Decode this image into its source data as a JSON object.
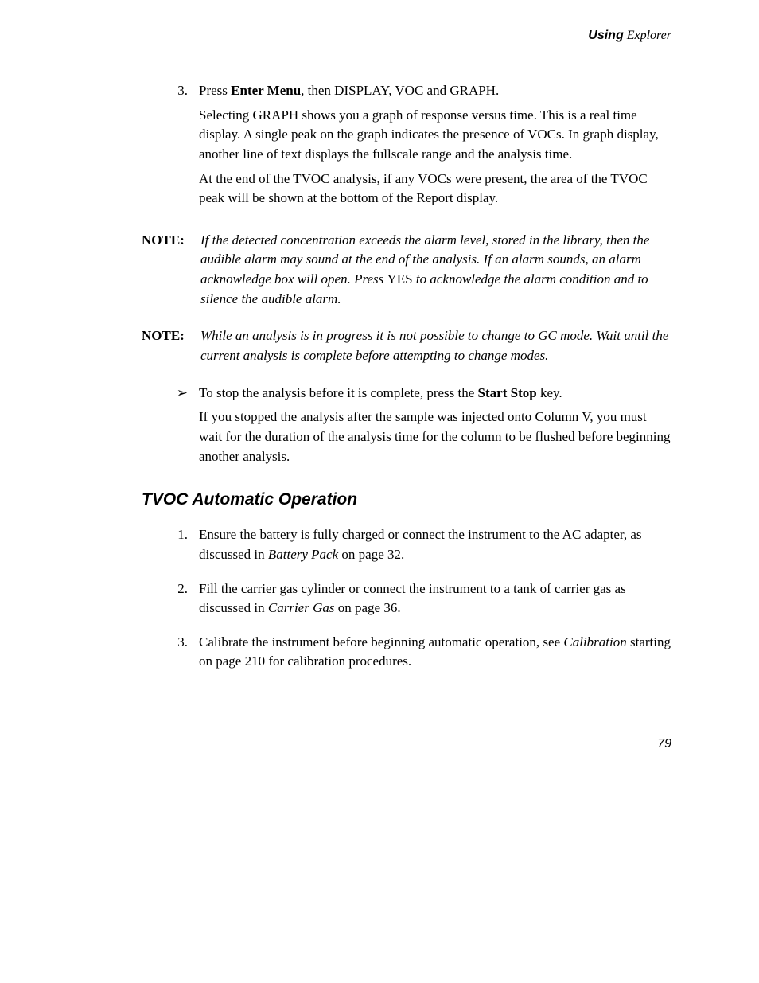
{
  "header": {
    "bold": "Using",
    "regular": " Explorer"
  },
  "step3": {
    "num": "3.",
    "p1_a": "Press ",
    "p1_b": "Enter Menu",
    "p1_c": ", then DISPLAY, VOC and GRAPH.",
    "p2": "Selecting GRAPH shows you a graph of response versus time. This is a real time display. A single peak on the graph indicates the presence of VOCs. In graph display, another line of text displays the fullscale range and the analysis time.",
    "p3": "At the end of the TVOC analysis, if any VOCs were present, the area of the TVOC peak will be shown at the bottom of the Report display."
  },
  "note1": {
    "label": "NOTE:",
    "a": "If the detected concentration exceeds the alarm level, stored in the library, then the audible alarm may sound at the end of the analysis. If an alarm sounds, an alarm acknowledge box will open. Press ",
    "b": "YES",
    "c": " to acknowledge the alarm condition and to silence the audible alarm."
  },
  "note2": {
    "label": "NOTE:",
    "text": "While an analysis is in progress it is not possible to change to GC mode. Wait until the current analysis is complete before attempting to change modes."
  },
  "stop": {
    "mark": "➢",
    "p1_a": "To stop the analysis before it is complete, press the ",
    "p1_b": "Start Stop",
    "p1_c": " key.",
    "p2": "If you stopped the analysis after the sample was injected onto Column V, you must wait for the duration of the analysis time for the column to be flushed before beginning another analysis."
  },
  "section_title": "TVOC Automatic Operation",
  "auto": {
    "i1": {
      "num": "1.",
      "a": "Ensure the battery is fully charged or connect the instrument to the AC adapter, as discussed in ",
      "b": "Battery Pack",
      "c": " on page 32."
    },
    "i2": {
      "num": "2.",
      "a": "Fill the carrier gas cylinder or connect the instrument to a tank of carrier gas as discussed in ",
      "b": "Carrier Gas",
      "c": " on page 36."
    },
    "i3": {
      "num": "3.",
      "a": "Calibrate the instrument before beginning automatic operation, see ",
      "b": "Calibration",
      "c": " starting on page 210 for calibration procedures."
    }
  },
  "page_number": "79"
}
